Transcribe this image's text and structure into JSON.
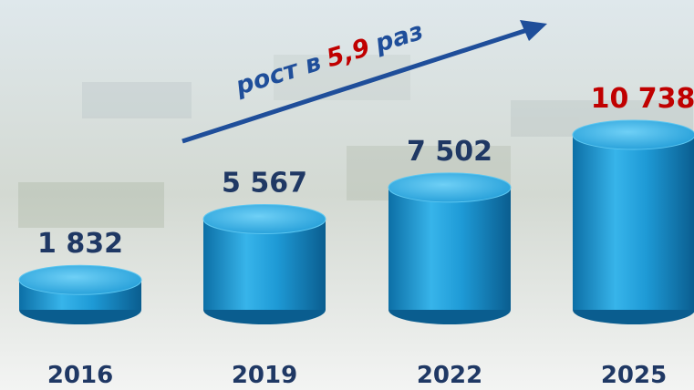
{
  "chart_data": {
    "type": "cylinder",
    "categories": [
      "2016",
      "2019",
      "2022",
      "2025"
    ],
    "values": [
      1832,
      5567,
      7502,
      10738
    ],
    "value_labels": [
      "1 832",
      "5 567",
      "7 502",
      "10 738"
    ],
    "color": "#1e9ad6",
    "label_color": "#1f3864",
    "highlight_color": "#c00000",
    "highlight_index": 3,
    "annotation": {
      "parts": [
        "рост в",
        "5,9",
        "раз"
      ],
      "colors": [
        "#1f4e9a",
        "#c00000",
        "#1f4e9a"
      ]
    }
  }
}
